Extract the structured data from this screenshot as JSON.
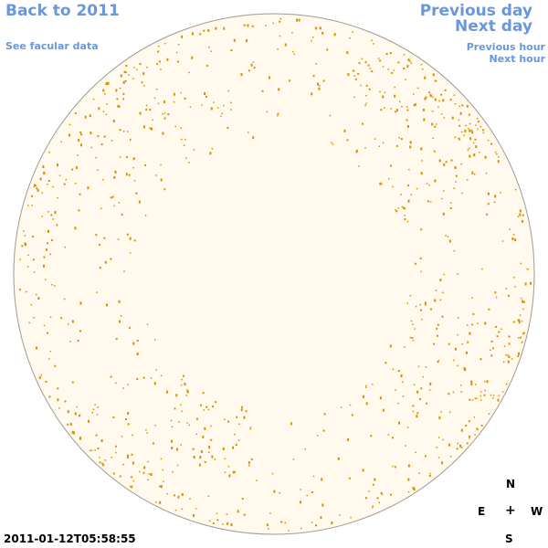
{
  "nav": {
    "back_label": "Back to 2011",
    "facular_label": "See facular data",
    "prev_day_label": "Previous day",
    "next_day_label": "Next day",
    "prev_hour_label": "Previous hour",
    "next_hour_label": "Next hour"
  },
  "compass": {
    "north": "N",
    "east": "E",
    "center": "+",
    "west": "W",
    "south": "S"
  },
  "timestamp": "2011-01-12T05:58:55",
  "colors": {
    "link": "#6a96dc",
    "disk_fill": "#fff9ee",
    "disk_stroke": "#a09a90",
    "feature": "#e08c00"
  }
}
